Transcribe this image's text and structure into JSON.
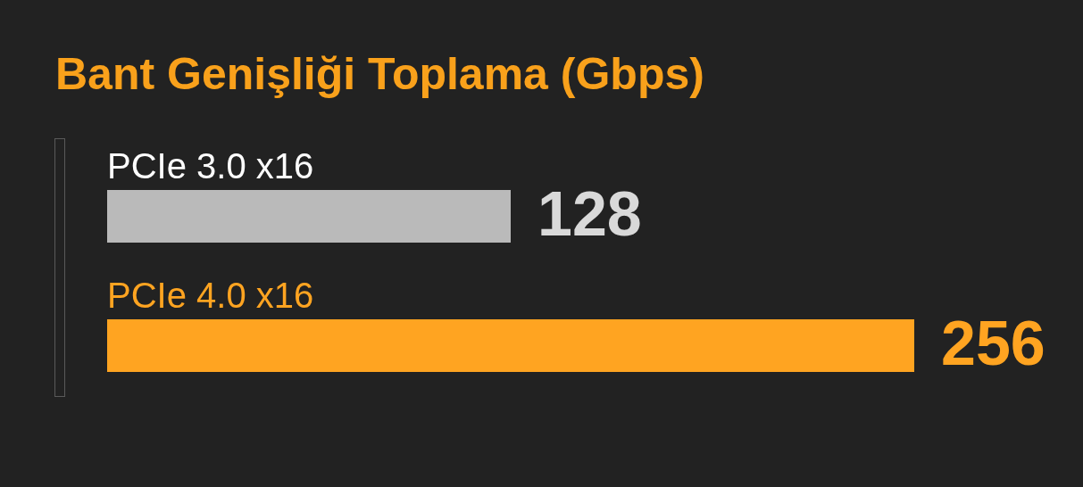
{
  "chart_data": {
    "type": "bar",
    "orientation": "horizontal",
    "title": "Bant Genişliği Toplama (Gbps)",
    "categories": [
      "PCIe 3.0 x16",
      "PCIe 4.0 x16"
    ],
    "values": [
      128,
      256
    ],
    "colors": [
      "#bababa",
      "#ffa421"
    ],
    "data_labels": true
  }
}
